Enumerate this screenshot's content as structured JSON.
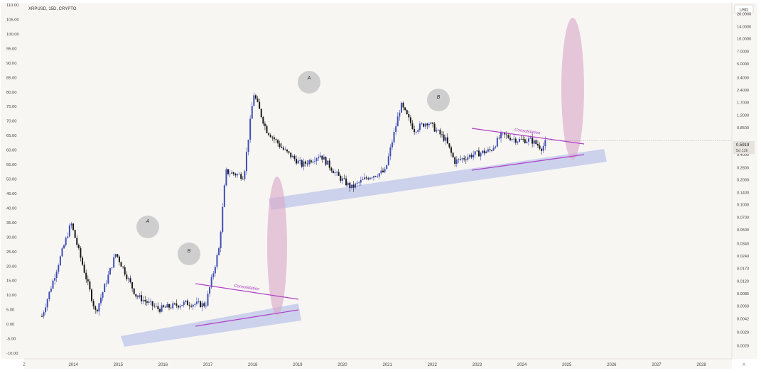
{
  "header": {
    "symbol_label": "XRPUSD, 15D, CRYPTO"
  },
  "currency_label": "USD",
  "left_axis_ticks": [
    "110.00",
    "105.00",
    "100.00",
    "95.00",
    "90.00",
    "85.00",
    "80.00",
    "75.00",
    "70.00",
    "65.00",
    "60.00",
    "55.00",
    "50.00",
    "45.00",
    "40.00",
    "35.00",
    "30.00",
    "25.00",
    "20.00",
    "15.00",
    "10.00",
    "5.00",
    "0.00",
    "-5.00",
    "-10.00"
  ],
  "right_axis_ticks": [
    "20.0000",
    "14.0000",
    "10.0000",
    "7.0000",
    "5.0000",
    "3.4000",
    "2.4000",
    "1.7000",
    "1.2000",
    "0.8500",
    "0.5919",
    "0.4000",
    "0.2800",
    "0.2000",
    "0.1400",
    "0.1000",
    "0.0700",
    "0.0500",
    "0.0340",
    "0.0240",
    "0.0170",
    "0.0120",
    "0.0085",
    "0.0060",
    "0.0042",
    "0.0029",
    "0.0020"
  ],
  "x_axis_ticks": [
    "2014",
    "2015",
    "2016",
    "2017",
    "2018",
    "2019",
    "2020",
    "2021",
    "2022",
    "2023",
    "2024",
    "2025",
    "2026",
    "2027",
    "2028"
  ],
  "price_tag": {
    "price": "0.5919",
    "countdown": "5d 12h"
  },
  "footer": {
    "left_icon_label": "Z",
    "right_icon_label": "A"
  },
  "annotations": {
    "peaks": [
      "A",
      "B",
      "A",
      "B"
    ],
    "consolidation_labels": [
      "Consolidation",
      "Consolidation"
    ]
  },
  "colors": {
    "bull_candle": "#3f4fb5",
    "bear_candle": "#1a1a1a",
    "support_band": "#a7b4e6",
    "projection_ellipse": "#d9a7c7",
    "consolidation_line": "#b040c8",
    "peak_circle": "#bdbdbd"
  },
  "chart_data": {
    "type": "candlestick",
    "title": "XRPUSD, 15D, CRYPTO",
    "y_scale": "log",
    "ylim": [
      0.0015,
      26
    ],
    "xlim": [
      2013.0,
      2028.6
    ],
    "x_ticks": [
      2014,
      2015,
      2016,
      2017,
      2018,
      2019,
      2020,
      2021,
      2022,
      2023,
      2024,
      2025,
      2026,
      2027,
      2028
    ],
    "last_price": 0.5919,
    "key_points": [
      {
        "x": 2013.3,
        "close": 0.0045
      },
      {
        "x": 2013.95,
        "close": 0.06
      },
      {
        "x": 2014.5,
        "close": 0.005
      },
      {
        "x": 2014.95,
        "close": 0.026
      },
      {
        "x": 2015.4,
        "close": 0.008
      },
      {
        "x": 2015.9,
        "close": 0.0055
      },
      {
        "x": 2016.5,
        "close": 0.0065
      },
      {
        "x": 2016.95,
        "close": 0.0062
      },
      {
        "x": 2017.25,
        "close": 0.03
      },
      {
        "x": 2017.4,
        "close": 0.25
      },
      {
        "x": 2017.8,
        "close": 0.22
      },
      {
        "x": 2018.02,
        "close": 2.2
      },
      {
        "x": 2018.3,
        "close": 0.8
      },
      {
        "x": 2018.7,
        "close": 0.45
      },
      {
        "x": 2019.1,
        "close": 0.3
      },
      {
        "x": 2019.5,
        "close": 0.4
      },
      {
        "x": 2019.9,
        "close": 0.22
      },
      {
        "x": 2020.2,
        "close": 0.16
      },
      {
        "x": 2020.6,
        "close": 0.22
      },
      {
        "x": 2020.95,
        "close": 0.25
      },
      {
        "x": 2021.3,
        "close": 1.6
      },
      {
        "x": 2021.6,
        "close": 0.8
      },
      {
        "x": 2021.9,
        "close": 1.0
      },
      {
        "x": 2022.3,
        "close": 0.6
      },
      {
        "x": 2022.5,
        "close": 0.33
      },
      {
        "x": 2022.9,
        "close": 0.4
      },
      {
        "x": 2023.3,
        "close": 0.45
      },
      {
        "x": 2023.55,
        "close": 0.7
      },
      {
        "x": 2023.9,
        "close": 0.6
      },
      {
        "x": 2024.2,
        "close": 0.6
      },
      {
        "x": 2024.45,
        "close": 0.48
      },
      {
        "x": 2024.55,
        "close": 0.5919
      }
    ]
  }
}
